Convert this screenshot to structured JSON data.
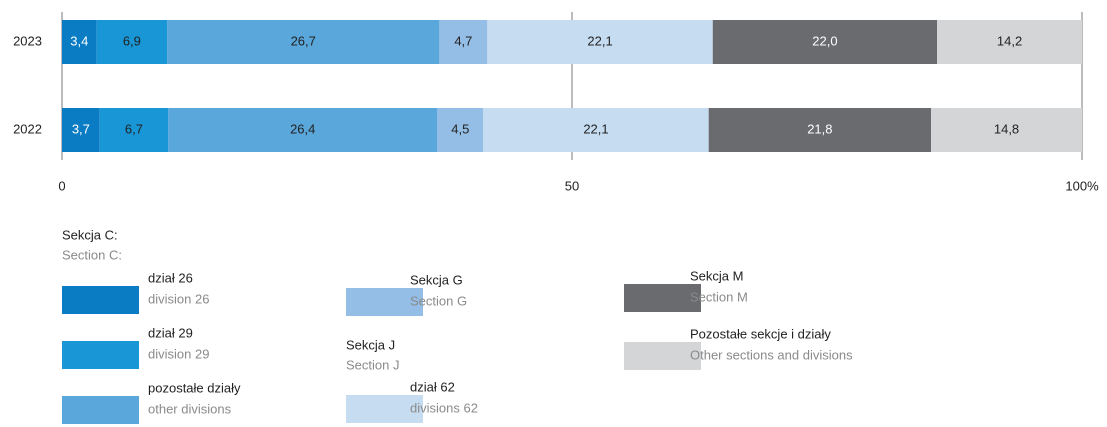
{
  "chart_data": {
    "type": "stacked-barh",
    "categories": [
      "2023",
      "2022"
    ],
    "series": [
      {
        "name": "dział 26",
        "name_en": "division 26",
        "color": "#0a7cc4",
        "values": [
          3.4,
          3.7
        ],
        "value_labels": [
          "3,4",
          "3,7"
        ]
      },
      {
        "name": "dział 29",
        "name_en": "division 29",
        "color": "#1896d6",
        "values": [
          6.9,
          6.7
        ],
        "value_labels": [
          "6,9",
          "6,7"
        ]
      },
      {
        "name": "pozostałe działy",
        "name_en": "other divisions",
        "color": "#5aa7dc",
        "values": [
          26.7,
          26.4
        ],
        "value_labels": [
          "26,7",
          "26,4"
        ]
      },
      {
        "name": "Sekcja G",
        "name_en": "Section G",
        "color": "#94bee6",
        "values": [
          4.7,
          4.5
        ],
        "value_labels": [
          "4,7",
          "4,5"
        ]
      },
      {
        "name": "dział 62",
        "name_en": "divisions 62",
        "color": "#c6dcf1",
        "values": [
          22.1,
          22.1
        ],
        "value_labels": [
          "22,1",
          "22,1"
        ]
      },
      {
        "name": "Sekcja M",
        "name_en": "Section M",
        "color": "#6a6b6e",
        "values": [
          22.0,
          21.8
        ],
        "value_labels": [
          "22,0",
          "21,8"
        ]
      },
      {
        "name": "Pozostałe sekcje i działy",
        "name_en": "Other sections and divisions",
        "color": "#d4d5d7",
        "values": [
          14.2,
          14.8
        ],
        "value_labels": [
          "14,2",
          "14,8"
        ]
      }
    ],
    "legend_groups": [
      {
        "name": "Sekcja C:",
        "name_en": "Section C:"
      },
      {
        "name": "Sekcja J",
        "name_en": "Section J"
      }
    ],
    "xlim": [
      0,
      100
    ],
    "xticks": [
      0,
      50,
      {
        "value": 100,
        "label": "100%"
      }
    ],
    "grid": true
  }
}
